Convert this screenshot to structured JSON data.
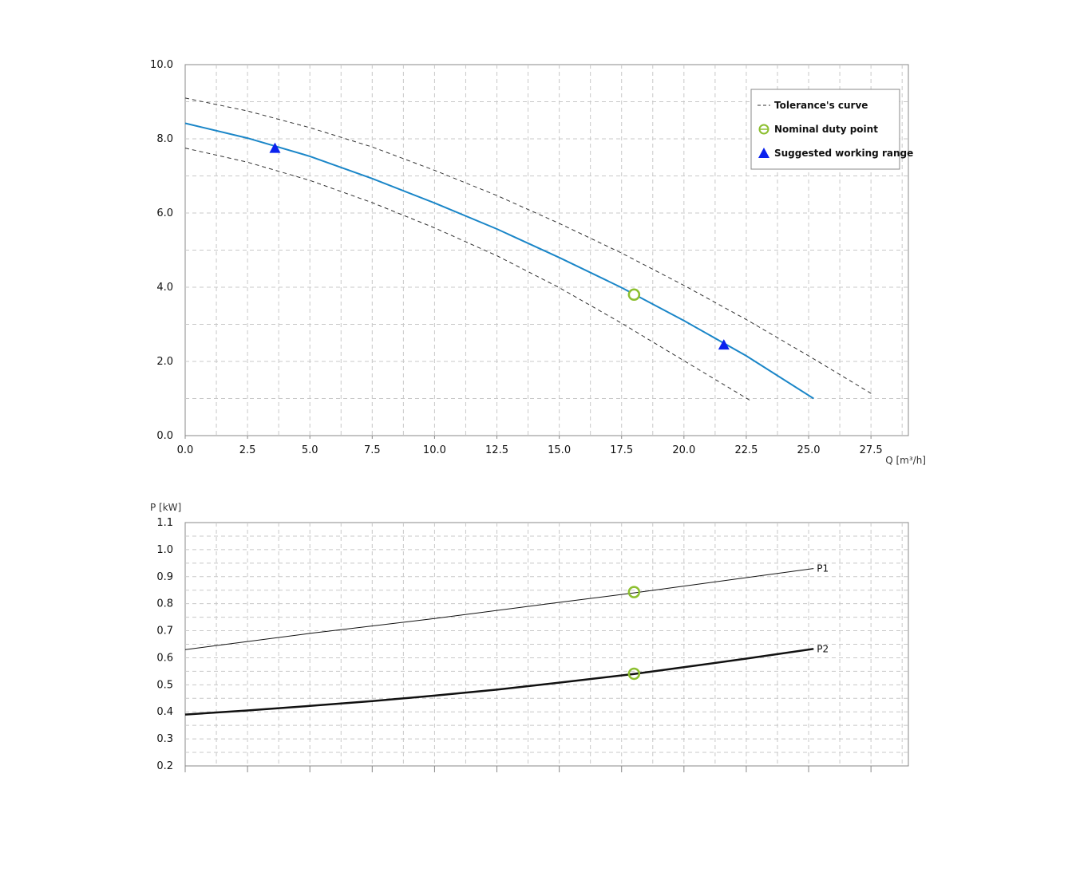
{
  "chart_data": [
    {
      "type": "line",
      "xlabel": "Q [m³/h]",
      "ylabel": "",
      "xlim": [
        0,
        29
      ],
      "ylim": [
        0,
        10
      ],
      "x_ticks": [
        "0.0",
        "2.5",
        "5.0",
        "7.5",
        "10.0",
        "12.5",
        "15.0",
        "17.5",
        "20.0",
        "22.5",
        "25.0",
        "27.5"
      ],
      "y_ticks": [
        "0.0",
        "2.0",
        "4.0",
        "6.0",
        "8.0",
        "10.0"
      ],
      "grid": true,
      "legend_position": "top-right",
      "legend": [
        {
          "label": "Tolerance's curve",
          "symbol": "dashed-line"
        },
        {
          "label": "Nominal duty point",
          "symbol": "open-circle"
        },
        {
          "label": "Suggested working range",
          "symbol": "triangle"
        }
      ],
      "series": [
        {
          "role": "head-curve",
          "color": "#1a86c8",
          "x": [
            0,
            2.5,
            5,
            7.5,
            10,
            12.5,
            15,
            17.5,
            20,
            22.5,
            25.2
          ],
          "y": [
            8.42,
            8.02,
            7.53,
            6.93,
            6.27,
            5.57,
            4.8,
            3.99,
            3.1,
            2.15,
            1.0
          ]
        },
        {
          "role": "tolerance-upper",
          "color": "#333333",
          "dash": true,
          "x": [
            0,
            2.5,
            5,
            7.5,
            10,
            12.5,
            15,
            17.5,
            20,
            22.5,
            25,
            27.6
          ],
          "y": [
            9.1,
            8.75,
            8.3,
            7.78,
            7.15,
            6.47,
            5.72,
            4.92,
            4.05,
            3.13,
            2.15,
            1.1
          ]
        },
        {
          "role": "tolerance-lower",
          "color": "#333333",
          "dash": true,
          "x": [
            0,
            2.5,
            5,
            7.5,
            10,
            12.5,
            15,
            17.5,
            20,
            22.65
          ],
          "y": [
            7.75,
            7.37,
            6.88,
            6.28,
            5.6,
            4.85,
            3.99,
            3.03,
            2.02,
            0.95
          ]
        }
      ],
      "duty_point": {
        "x": 18.0,
        "y": 3.8,
        "color": "#8cbf2f"
      },
      "working_range": [
        {
          "x": 3.6,
          "y": 7.75
        },
        {
          "x": 21.6,
          "y": 2.45
        }
      ],
      "working_range_color": "#0a22ee"
    },
    {
      "type": "line",
      "xlabel": "",
      "ylabel": "P [kW]",
      "xlim": [
        0,
        29
      ],
      "ylim": [
        0.2,
        1.1
      ],
      "x_ticks_count": 12,
      "y_ticks": [
        "0.2",
        "0.3",
        "0.4",
        "0.5",
        "0.6",
        "0.7",
        "0.8",
        "0.9",
        "1.0",
        "1.1"
      ],
      "grid": true,
      "series": [
        {
          "name": "P1",
          "color": "#111111",
          "width": 1,
          "x": [
            0,
            5,
            10,
            15,
            18,
            20,
            25.2
          ],
          "y": [
            0.63,
            0.69,
            0.745,
            0.805,
            0.84,
            0.865,
            0.93
          ]
        },
        {
          "name": "P2",
          "color": "#111111",
          "width": 2.5,
          "x": [
            0,
            2.5,
            5,
            7.5,
            10,
            12.5,
            15,
            18,
            20,
            22.5,
            25.2
          ],
          "y": [
            0.39,
            0.405,
            0.422,
            0.44,
            0.46,
            0.482,
            0.508,
            0.54,
            0.565,
            0.597,
            0.633
          ]
        }
      ],
      "duty_points": [
        {
          "x": 18.0,
          "y": 0.843
        },
        {
          "x": 18.0,
          "y": 0.541
        }
      ],
      "duty_color": "#8cbf2f"
    }
  ]
}
